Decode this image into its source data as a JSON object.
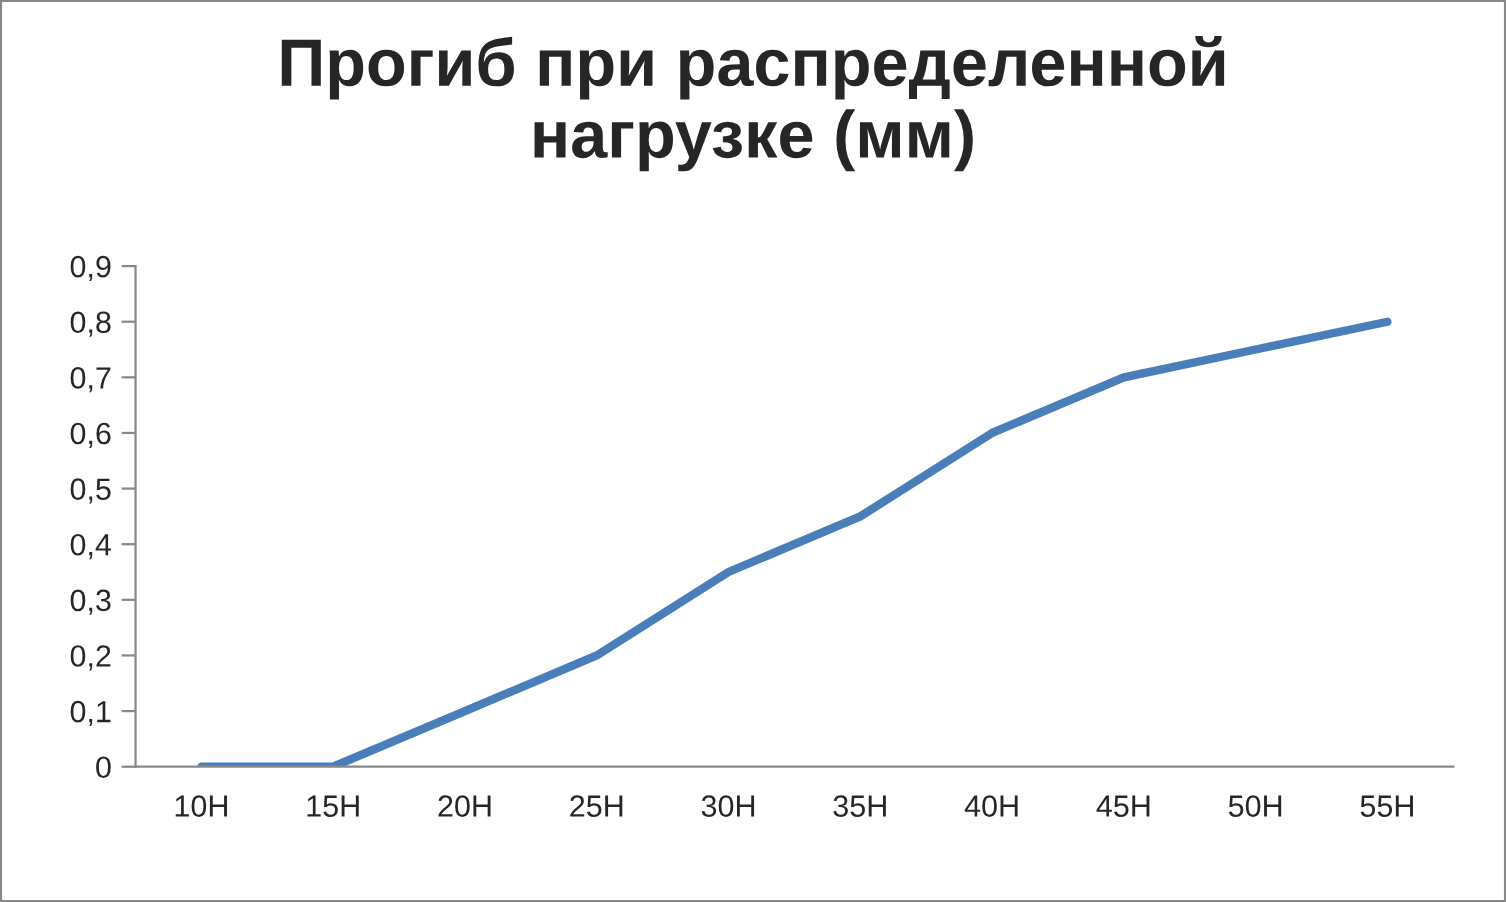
{
  "chart_data": {
    "type": "line",
    "title": "Прогиб при распределенной\nнагрузке (мм)",
    "categories": [
      "10Н",
      "15Н",
      "20Н",
      "25Н",
      "30Н",
      "35Н",
      "40Н",
      "45Н",
      "50Н",
      "55Н"
    ],
    "series": [
      {
        "color": "#4a7ebb",
        "values": [
          0,
          0,
          0.1,
          0.2,
          0.35,
          0.45,
          0.6,
          0.7,
          0.75,
          0.8
        ]
      }
    ],
    "ylim": [
      0,
      0.9
    ],
    "yticks": [
      0,
      {
        "value": 0.1,
        "label": "0,1"
      },
      {
        "value": 0.2,
        "label": "0,2"
      },
      {
        "value": 0.3,
        "label": "0,3"
      },
      {
        "value": 0.4,
        "label": "0,4"
      },
      {
        "value": 0.5,
        "label": "0,5"
      },
      {
        "value": 0.6,
        "label": "0,6"
      },
      {
        "value": 0.7,
        "label": "0,7"
      },
      {
        "value": 0.8,
        "label": "0,8"
      },
      {
        "value": 0.9,
        "label": "0,9"
      }
    ],
    "grid": false,
    "legend": false,
    "marker": "none",
    "line_style": "solid"
  }
}
